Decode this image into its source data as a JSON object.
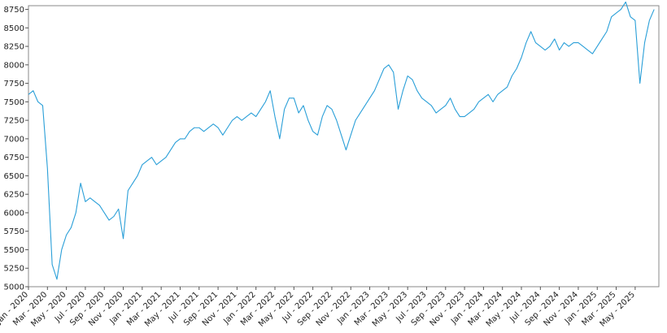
{
  "chart_data": {
    "type": "line",
    "color": "#2a9fd8",
    "ylim": [
      5000,
      8800
    ],
    "yticks": [
      5000,
      5250,
      5500,
      5750,
      6000,
      6250,
      6500,
      6750,
      7000,
      7250,
      7500,
      7750,
      8000,
      8250,
      8500,
      8750
    ],
    "categories": [
      "Jan - 2020",
      null,
      null,
      null,
      "Mar - 2020",
      null,
      null,
      null,
      "May - 2020",
      null,
      null,
      null,
      "Jul - 2020",
      null,
      null,
      null,
      "Sep - 2020",
      null,
      null,
      null,
      "Nov - 2020",
      null,
      null,
      null,
      "Jan - 2021",
      null,
      null,
      null,
      "Mar - 2021",
      null,
      null,
      null,
      "May - 2021",
      null,
      null,
      null,
      "Jul - 2021",
      null,
      null,
      null,
      "Sep - 2021",
      null,
      null,
      null,
      "Nov - 2021",
      null,
      null,
      null,
      "Jan - 2022",
      null,
      null,
      null,
      "Mar - 2022",
      null,
      null,
      null,
      "May - 2022",
      null,
      null,
      null,
      "Jul - 2022",
      null,
      null,
      null,
      "Sep - 2022",
      null,
      null,
      null,
      "Nov - 2022",
      null,
      null,
      null,
      "Jan - 2023",
      null,
      null,
      null,
      "Mar - 2023",
      null,
      null,
      null,
      "May - 2023",
      null,
      null,
      null,
      "Jul - 2023",
      null,
      null,
      null,
      "Sep - 2023",
      null,
      null,
      null,
      "Nov - 2023",
      null,
      null,
      null,
      "Jan - 2024",
      null,
      null,
      null,
      "Mar - 2024",
      null,
      null,
      null,
      "May - 2024",
      null,
      null,
      null,
      "Jul - 2024",
      null,
      null,
      null,
      "Sep - 2024",
      null,
      null,
      null,
      "Nov - 2024",
      null,
      null,
      null,
      "Jan - 2025",
      null,
      null,
      null,
      "Mar - 2025",
      null,
      null,
      null,
      "May - 2025",
      null,
      null,
      null,
      null
    ],
    "values": [
      7600,
      7650,
      7500,
      7450,
      6600,
      5300,
      5100,
      5500,
      5700,
      5800,
      6000,
      6400,
      6150,
      6200,
      6150,
      6100,
      6000,
      5900,
      5950,
      6050,
      5650,
      6300,
      6400,
      6500,
      6650,
      6700,
      6750,
      6650,
      6700,
      6750,
      6850,
      6950,
      7000,
      7000,
      7100,
      7150,
      7150,
      7100,
      7150,
      7200,
      7150,
      7050,
      7150,
      7250,
      7300,
      7250,
      7300,
      7350,
      7300,
      7400,
      7500,
      7650,
      7300,
      7000,
      7400,
      7550,
      7550,
      7350,
      7450,
      7250,
      7100,
      7050,
      7300,
      7450,
      7400,
      7250,
      7050,
      6850,
      7050,
      7250,
      7350,
      7450,
      7550,
      7650,
      7800,
      7950,
      8000,
      7900,
      7400,
      7650,
      7850,
      7800,
      7650,
      7550,
      7500,
      7450,
      7350,
      7400,
      7450,
      7550,
      7400,
      7300,
      7300,
      7350,
      7400,
      7500,
      7550,
      7600,
      7500,
      7600,
      7650,
      7700,
      7850,
      7950,
      8100,
      8300,
      8450,
      8300,
      8250,
      8200,
      8250,
      8350,
      8200,
      8300,
      8250,
      8300,
      8300,
      8250,
      8200,
      8150,
      8250,
      8350,
      8450,
      8650,
      8700,
      8750,
      8850,
      8650,
      8600,
      7750,
      8300,
      8600,
      8750
    ]
  }
}
